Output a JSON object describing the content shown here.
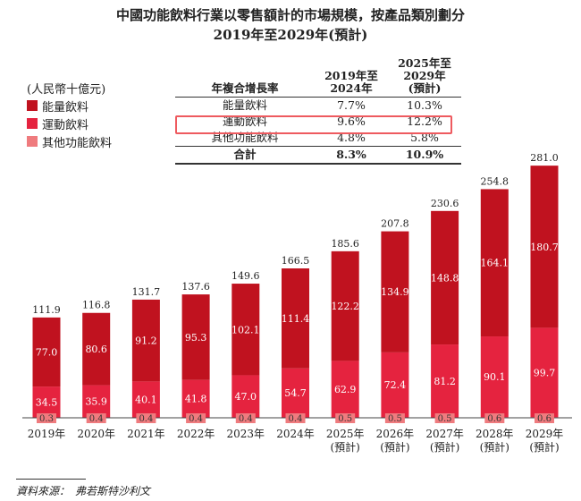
{
  "title": "中國功能飲料行業以零售額計的市場規模，按產品類別劃分",
  "subtitle": "2019年至2029年(預計)",
  "colors": {
    "energy": "#c0121f",
    "sports": "#e5233f",
    "other": "#ef7b7e"
  },
  "cagr_table": {
    "header": [
      "年複合增長率",
      "2019年至\n2024年",
      "2025年至\n2029年\n(預計)"
    ],
    "rows": [
      [
        "能量飲料",
        "7.7%",
        "10.3%"
      ],
      [
        "運動飲料",
        "9.6%",
        "12.2%"
      ],
      [
        "其他功能飲料",
        "4.8%",
        "5.8%"
      ]
    ],
    "total": [
      "合計",
      "8.3%",
      "10.9%"
    ],
    "highlighted_row": "運動飲料"
  },
  "chart_data": {
    "type": "bar",
    "stacked": true,
    "unit": "(人民幣十億元)",
    "legend": [
      "能量飲料",
      "運動飲料",
      "其他功能飲料"
    ],
    "legend_position": "top-left",
    "categories": [
      "2019年",
      "2020年",
      "2021年",
      "2022年",
      "2023年",
      "2024年",
      "2025年\n(預計)",
      "2026年\n(預計)",
      "2027年\n(預計)",
      "2028年\n(預計)",
      "2029年\n(預計)"
    ],
    "series": [
      {
        "name": "其他功能飲料",
        "values": [
          0.3,
          0.4,
          0.4,
          0.4,
          0.4,
          0.4,
          0.5,
          0.5,
          0.5,
          0.6,
          0.6
        ]
      },
      {
        "name": "運動飲料",
        "values": [
          34.5,
          35.9,
          40.1,
          41.8,
          47.0,
          54.7,
          62.9,
          72.4,
          81.2,
          90.1,
          99.7
        ]
      },
      {
        "name": "能量飲料",
        "values": [
          77.0,
          80.6,
          91.2,
          95.3,
          102.1,
          111.4,
          122.2,
          134.9,
          148.8,
          164.1,
          180.7
        ]
      }
    ],
    "totals": [
      "111.9",
      "116.8",
      "131.7",
      "137.6",
      "149.6",
      "166.5",
      "185.6",
      "207.8",
      "230.6",
      "254.8",
      "281.0"
    ],
    "grid": false
  },
  "source": "資料來源：　弗若斯特沙利文"
}
